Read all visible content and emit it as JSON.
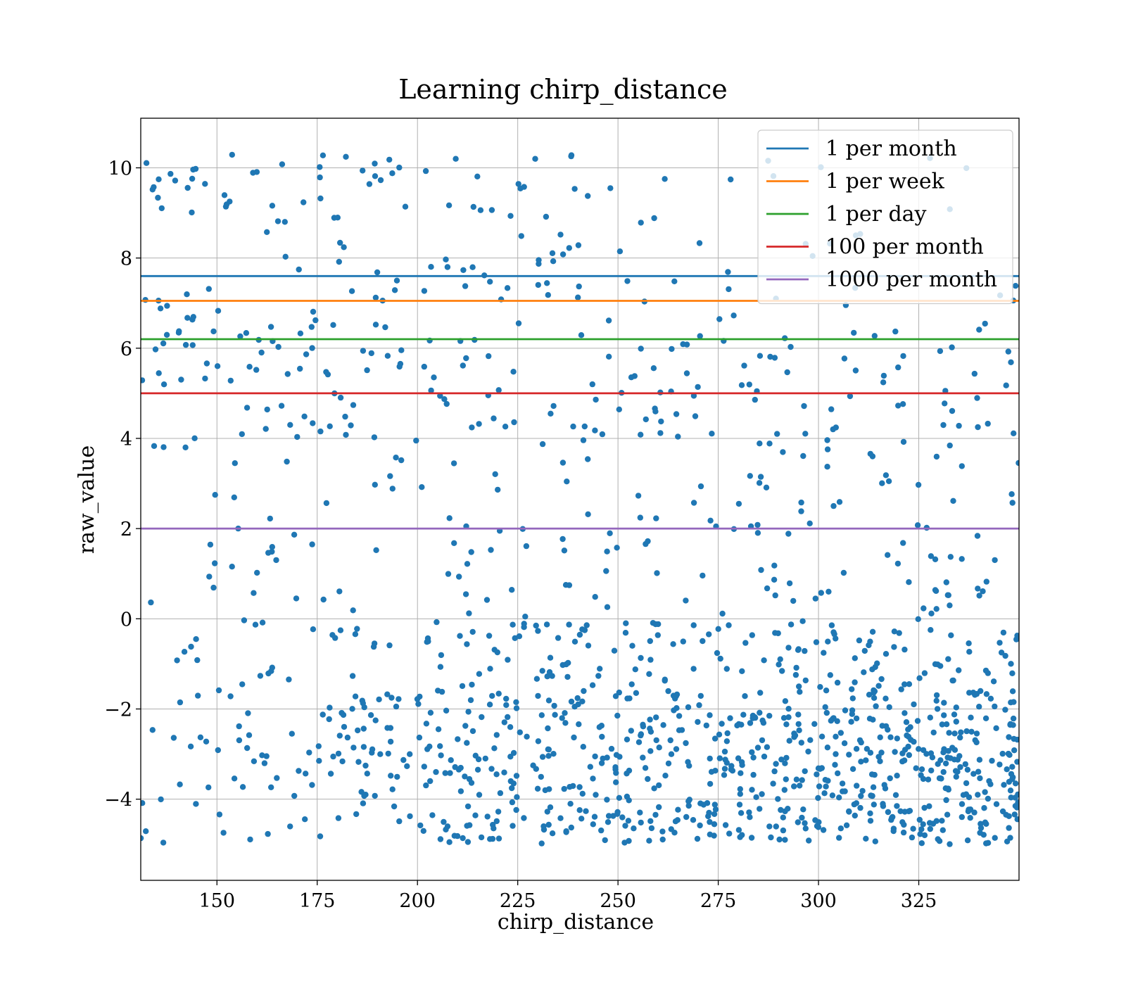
{
  "chart_data": {
    "type": "scatter",
    "title": "Learning chirp_distance",
    "xlabel": "chirp_distance",
    "ylabel": "raw_value",
    "xlim": [
      131,
      350
    ],
    "ylim": [
      -5.8,
      11.1
    ],
    "xticks": [
      150,
      175,
      200,
      225,
      250,
      275,
      300,
      325
    ],
    "xtick_labels": [
      "150",
      "175",
      "200",
      "225",
      "250",
      "275",
      "300",
      "325"
    ],
    "yticks": [
      -4,
      -2,
      0,
      2,
      4,
      6,
      8,
      10
    ],
    "ytick_labels": [
      "−4",
      "−2",
      "0",
      "2",
      "4",
      "6",
      "8",
      "10"
    ],
    "grid": true,
    "legend_position": "top-right",
    "point_color": "#1f77b4",
    "point_count": 1400,
    "lines": [
      {
        "name": "1 per month",
        "y": 7.6,
        "color": "#1f77b4"
      },
      {
        "name": "1 per week",
        "y": 7.05,
        "color": "#ff7f0e"
      },
      {
        "name": "1 per day",
        "y": 6.2,
        "color": "#2ca02c"
      },
      {
        "name": "100 per month",
        "y": 5.0,
        "color": "#d62728"
      },
      {
        "name": "1000 per month",
        "y": 2.0,
        "color": "#9467bd"
      }
    ],
    "density_bands": [
      {
        "x_from": 131,
        "x_to": 155,
        "weights": [
          0.12,
          0.13,
          0.08,
          0.07,
          0.08,
          0.07,
          0.12,
          0.08,
          0.08,
          0.17
        ]
      },
      {
        "x_from": 155,
        "x_to": 180,
        "weights": [
          0.18,
          0.22,
          0.09,
          0.07,
          0.05,
          0.07,
          0.11,
          0.08,
          0.05,
          0.08
        ]
      },
      {
        "x_from": 180,
        "x_to": 205,
        "weights": [
          0.2,
          0.25,
          0.1,
          0.06,
          0.05,
          0.05,
          0.09,
          0.07,
          0.05,
          0.08
        ]
      },
      {
        "x_from": 205,
        "x_to": 230,
        "weights": [
          0.24,
          0.24,
          0.12,
          0.07,
          0.06,
          0.05,
          0.07,
          0.06,
          0.04,
          0.05
        ]
      },
      {
        "x_from": 230,
        "x_to": 255,
        "weights": [
          0.27,
          0.24,
          0.14,
          0.07,
          0.06,
          0.04,
          0.06,
          0.05,
          0.03,
          0.04
        ]
      },
      {
        "x_from": 255,
        "x_to": 280,
        "weights": [
          0.3,
          0.27,
          0.14,
          0.07,
          0.05,
          0.04,
          0.04,
          0.04,
          0.03,
          0.02
        ]
      },
      {
        "x_from": 280,
        "x_to": 305,
        "weights": [
          0.32,
          0.3,
          0.13,
          0.07,
          0.05,
          0.03,
          0.03,
          0.03,
          0.02,
          0.02
        ]
      },
      {
        "x_from": 305,
        "x_to": 330,
        "weights": [
          0.34,
          0.32,
          0.12,
          0.06,
          0.05,
          0.03,
          0.03,
          0.02,
          0.02,
          0.01
        ]
      },
      {
        "x_from": 330,
        "x_to": 350,
        "weights": [
          0.36,
          0.34,
          0.1,
          0.06,
          0.04,
          0.03,
          0.03,
          0.02,
          0.01,
          0.01
        ]
      }
    ],
    "value_bins": [
      [
        -5,
        -3.3
      ],
      [
        -3.3,
        -1.6
      ],
      [
        -1.6,
        0
      ],
      [
        0,
        2
      ],
      [
        2,
        4
      ],
      [
        4,
        5
      ],
      [
        5,
        6.2
      ],
      [
        6.2,
        7.6
      ],
      [
        7.6,
        9
      ],
      [
        9,
        10.3
      ]
    ]
  }
}
